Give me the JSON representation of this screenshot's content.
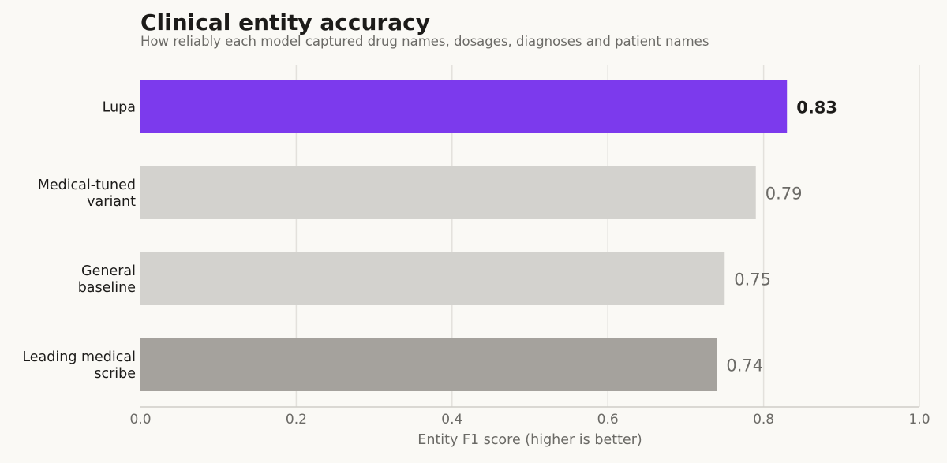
{
  "chart_data": {
    "type": "bar",
    "orientation": "horizontal",
    "title": "Clinical entity accuracy",
    "subtitle": "How reliably each model captured drug names, dosages, diagnoses and patient names",
    "xlabel": "Entity F1 score (higher is better)",
    "ylabel": "",
    "xlim": [
      0,
      1.0
    ],
    "ticks": [
      "0.0",
      "0.2",
      "0.4",
      "0.6",
      "0.8",
      "1.0"
    ],
    "tick_values": [
      0,
      0.2,
      0.4,
      0.6,
      0.8,
      1.0
    ],
    "grid": true,
    "categories": [
      [
        "Lupa"
      ],
      [
        "Medical-tuned",
        "variant"
      ],
      [
        "General",
        "baseline"
      ],
      [
        "Leading medical",
        "scribe"
      ]
    ],
    "values": [
      0.83,
      0.79,
      0.75,
      0.74
    ],
    "value_labels": [
      "0.83",
      "0.79",
      "0.75",
      "0.74"
    ],
    "colors": [
      "#7c3aed",
      "#d3d2ce",
      "#d3d2ce",
      "#a5a29d"
    ],
    "highlight_index": 0
  }
}
